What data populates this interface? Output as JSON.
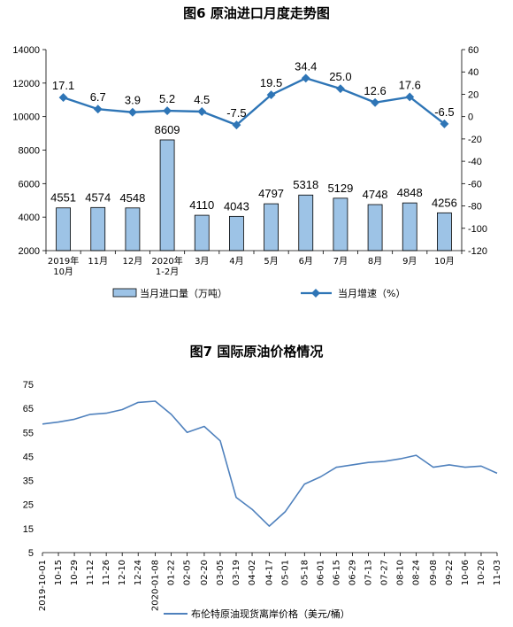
{
  "chart_data": [
    {
      "type": "bar",
      "title": "图6  原油进口月度走势图",
      "categories": [
        [
          "2019年",
          "10月"
        ],
        [
          "11月"
        ],
        [
          "12月"
        ],
        [
          "2020年",
          "1-2月"
        ],
        [
          "3月"
        ],
        [
          "4月"
        ],
        [
          "5月"
        ],
        [
          "6月"
        ],
        [
          "7月"
        ],
        [
          "8月"
        ],
        [
          "9月"
        ],
        [
          "10月"
        ]
      ],
      "series": [
        {
          "name": "当月进口量（万吨）",
          "type": "bar",
          "axis": "left",
          "color": "#9dc3e6",
          "values": [
            4551,
            4574,
            4548,
            8609,
            4110,
            4043,
            4797,
            5318,
            5129,
            4748,
            4848,
            4256
          ]
        },
        {
          "name": "当月增速（%）",
          "type": "line",
          "axis": "right",
          "color": "#2e75b6",
          "values": [
            17.1,
            6.7,
            3.9,
            5.2,
            4.5,
            -7.5,
            19.5,
            34.4,
            25.0,
            12.6,
            17.6,
            -6.5
          ]
        }
      ],
      "value_labels_bar": [
        "4551",
        "4574",
        "4548",
        "8609",
        "4110",
        "4043",
        "4797",
        "5318",
        "5129",
        "4748",
        "4848",
        "4256"
      ],
      "value_labels_line": [
        "17.1",
        "6.7",
        "3.9",
        "5.2",
        "4.5",
        "-7.5",
        "19.5",
        "34.4",
        "25.0",
        "12.6",
        "17.6",
        "-6.5"
      ],
      "ylim_left": [
        2000,
        14000
      ],
      "yticks_left": [
        "2000",
        "4000",
        "6000",
        "8000",
        "10000",
        "12000",
        "14000"
      ],
      "ylim_right": [
        -120,
        60
      ],
      "yticks_right": [
        "-120",
        "-100",
        "-80",
        "-60",
        "-40",
        "-20",
        "0",
        "20",
        "40",
        "60"
      ],
      "legend_position": "bottom"
    },
    {
      "type": "line",
      "title": "图7  国际原油价格情况",
      "series": [
        {
          "name": "布伦特原油现货离岸价格（美元/桶）",
          "color": "#4f81bd"
        }
      ],
      "ylim": [
        5,
        75
      ],
      "yticks": [
        "5",
        "15",
        "25",
        "35",
        "45",
        "55",
        "65",
        "75"
      ],
      "xticks": [
        "2019-10-01",
        "10-15",
        "10-29",
        "11-12",
        "11-26",
        "12-10",
        "12-24",
        "2020-01-08",
        "01-22",
        "02-05",
        "02-20",
        "03-05",
        "03-19",
        "04-02",
        "04-17",
        "05-01",
        "05-18",
        "06-01",
        "06-15",
        "06-29",
        "07-13",
        "07-27",
        "08-10",
        "08-24",
        "09-08",
        "09-22",
        "10-06",
        "10-20",
        "11-03"
      ],
      "x": [
        "2019-10-01",
        "2019-10-15",
        "2019-10-29",
        "2019-11-12",
        "2019-11-26",
        "2019-12-10",
        "2019-12-24",
        "2020-01-08",
        "2020-01-22",
        "2020-02-05",
        "2020-02-20",
        "2020-03-05",
        "2020-03-19",
        "2020-04-02",
        "2020-04-17",
        "2020-05-01",
        "2020-05-18",
        "2020-06-01",
        "2020-06-15",
        "2020-06-29",
        "2020-07-13",
        "2020-07-27",
        "2020-08-10",
        "2020-08-24",
        "2020-09-08",
        "2020-09-22",
        "2020-10-06",
        "2020-10-20",
        "2020-11-03"
      ],
      "values": [
        58.5,
        59.3,
        60.5,
        62.5,
        63.0,
        64.5,
        67.5,
        68.0,
        62.5,
        55.0,
        57.5,
        51.5,
        28.0,
        23.0,
        16.0,
        22.0,
        33.5,
        36.5,
        40.5,
        41.5,
        42.5,
        43.0,
        44.0,
        45.5,
        40.5,
        41.5,
        40.5,
        41.0,
        38.0
      ],
      "legend_position": "bottom"
    }
  ]
}
